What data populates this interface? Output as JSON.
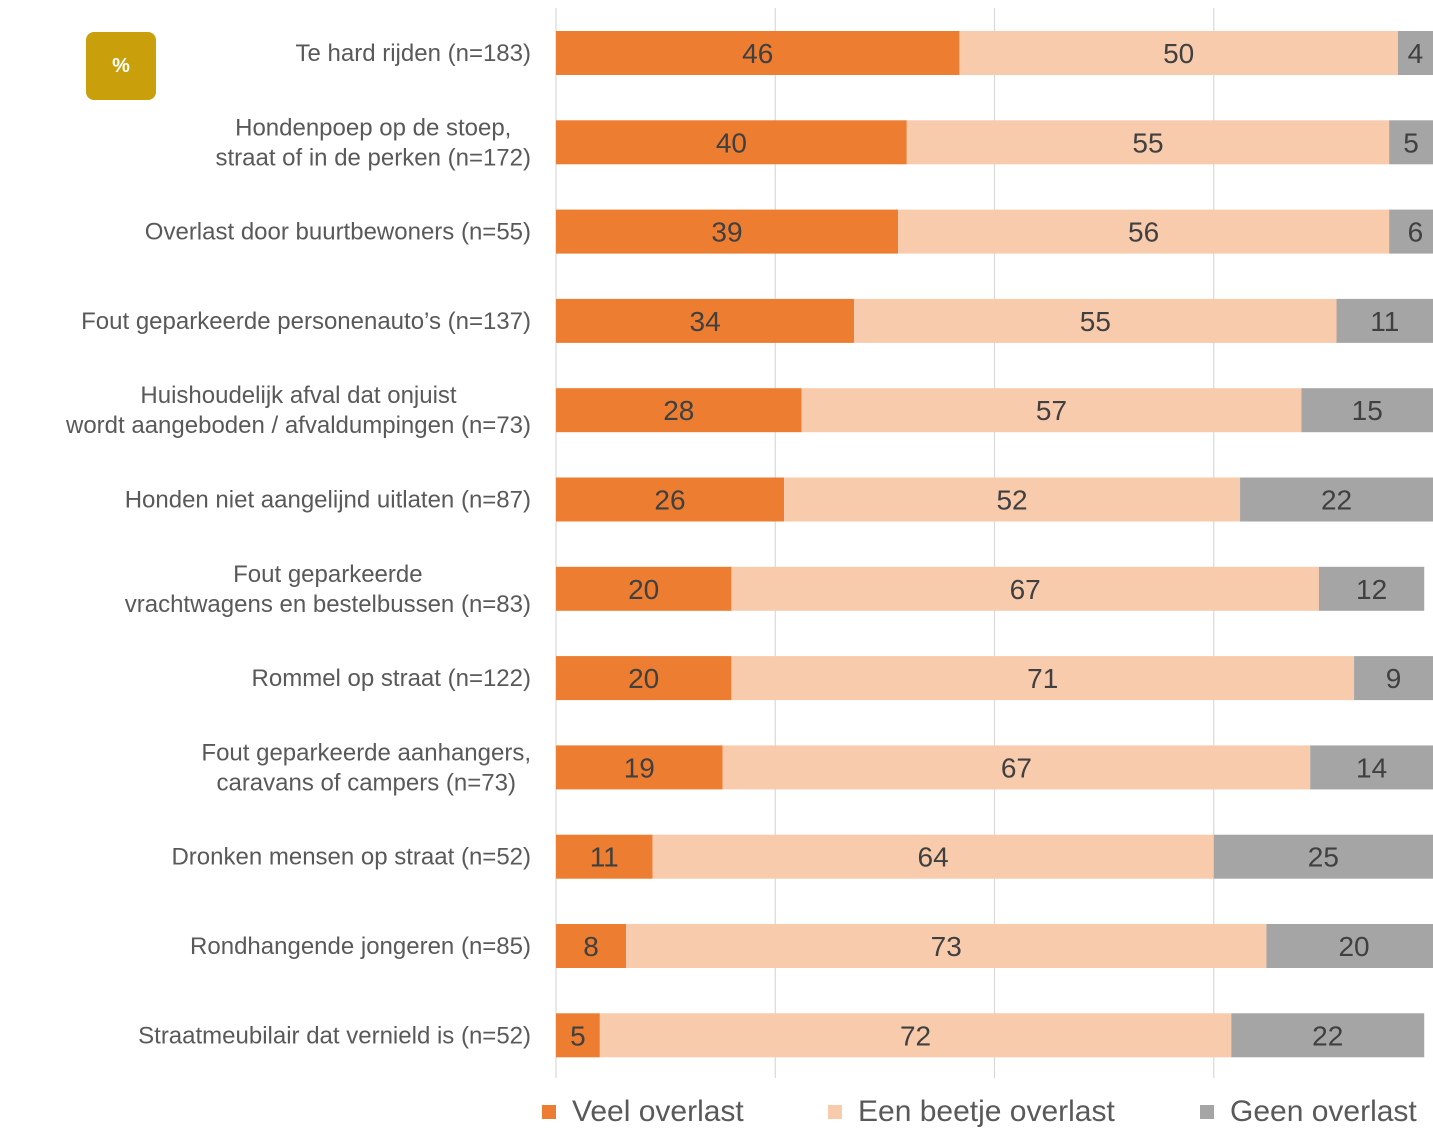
{
  "badge": {
    "label": "%",
    "color": "#C9A00C"
  },
  "chart_data": {
    "type": "bar",
    "orientation": "horizontal",
    "stacked": true,
    "unit": "%",
    "xlim": [
      0,
      100
    ],
    "grid": true,
    "legend_position": "bottom",
    "categories": [
      [
        "Te hard rijden (n=183)"
      ],
      [
        "Hondenpoep op de stoep,",
        "straat of in de perken (n=172)"
      ],
      [
        "Overlast door buurtbewoners (n=55)"
      ],
      [
        "Fout geparkeerde personenauto’s (n=137)"
      ],
      [
        "Huishoudelijk afval dat onjuist",
        "wordt aangeboden / afvaldumpingen (n=73)"
      ],
      [
        "Honden niet aangelijnd uitlaten (n=87)"
      ],
      [
        "Fout geparkeerde",
        "vrachtwagens en bestelbussen (n=83)"
      ],
      [
        "Rommel op straat (n=122)"
      ],
      [
        "Fout geparkeerde aanhangers,",
        "caravans of campers (n=73)"
      ],
      [
        "Dronken mensen op straat (n=52)"
      ],
      [
        "Rondhangende jongeren (n=85)"
      ],
      [
        "Straatmeubilair dat vernield is (n=52)"
      ]
    ],
    "series": [
      {
        "name": "Veel overlast",
        "color": "#ED7D31",
        "values": [
          46,
          40,
          39,
          34,
          28,
          26,
          20,
          20,
          19,
          11,
          8,
          5
        ]
      },
      {
        "name": "Een beetje overlast",
        "color": "#F8CBAD",
        "values": [
          50,
          55,
          56,
          55,
          57,
          52,
          67,
          71,
          67,
          64,
          73,
          72
        ]
      },
      {
        "name": "Geen overlast",
        "color": "#A5A5A5",
        "values": [
          4,
          5,
          6,
          11,
          15,
          22,
          12,
          9,
          14,
          25,
          20,
          22
        ]
      }
    ]
  }
}
